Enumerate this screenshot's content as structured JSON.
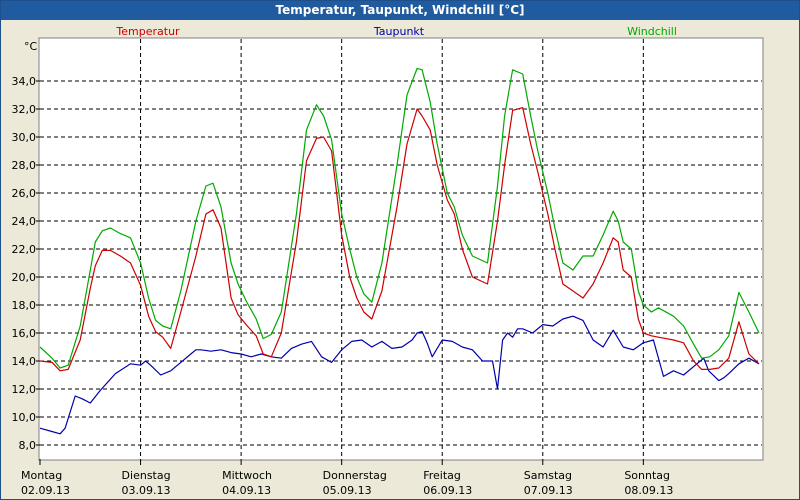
{
  "window": {
    "title": "Temperatur, Taupunkt, Windchill [°C]"
  },
  "chart_data": {
    "type": "line",
    "ylabel": "°C",
    "ylim": [
      7.0,
      37.0
    ],
    "yticks": [
      "8,0",
      "10,0",
      "12,0",
      "14,0",
      "16,0",
      "18,0",
      "20,0",
      "22,0",
      "24,0",
      "26,0",
      "28,0",
      "30,0",
      "32,0",
      "34,0"
    ],
    "ytick_values": [
      8,
      10,
      12,
      14,
      16,
      18,
      20,
      22,
      24,
      26,
      28,
      30,
      32,
      34
    ],
    "xlim": [
      0,
      7.18
    ],
    "x_days": [
      0,
      1,
      2,
      3,
      4,
      5,
      6
    ],
    "x_weekdays": [
      "Montag",
      "Dienstag",
      "Mittwoch",
      "Donnerstag",
      "Freitag",
      "Samstag",
      "Sonntag"
    ],
    "x_dates": [
      "02.09.13",
      "03.09.13",
      "04.09.13",
      "05.09.13",
      "06.09.13",
      "07.09.13",
      "08.09.13"
    ],
    "grid": true,
    "legend": "top",
    "series": [
      {
        "name": "Temperatur",
        "color": "#cc0000",
        "x": [
          0,
          0.12,
          0.2,
          0.28,
          0.4,
          0.5,
          0.55,
          0.62,
          0.7,
          0.8,
          0.9,
          1.0,
          1.08,
          1.15,
          1.22,
          1.3,
          1.4,
          1.55,
          1.65,
          1.72,
          1.8,
          1.9,
          1.97,
          2.05,
          2.15,
          2.22,
          2.3,
          2.4,
          2.55,
          2.65,
          2.75,
          2.82,
          2.9,
          3.0,
          3.08,
          3.15,
          3.22,
          3.3,
          3.4,
          3.55,
          3.65,
          3.75,
          3.8,
          3.88,
          3.95,
          4.05,
          4.12,
          4.2,
          4.3,
          4.45,
          4.55,
          4.62,
          4.7,
          4.8,
          4.88,
          4.95,
          5.05,
          5.12,
          5.2,
          5.3,
          5.4,
          5.5,
          5.6,
          5.7,
          5.75,
          5.8,
          5.88,
          5.95,
          6.0,
          6.08,
          6.15,
          6.3,
          6.4,
          6.5,
          6.58,
          6.66,
          6.75,
          6.85,
          6.95,
          7.05,
          7.15
        ],
        "values": [
          14.0,
          13.9,
          13.3,
          13.4,
          15.5,
          19.2,
          20.8,
          21.9,
          21.9,
          21.5,
          21.0,
          19.4,
          17.2,
          16.1,
          15.7,
          14.9,
          17.5,
          21.5,
          24.5,
          24.8,
          23.5,
          18.5,
          17.3,
          16.6,
          15.8,
          14.5,
          14.3,
          16.0,
          22.5,
          28.3,
          29.9,
          30.0,
          29.0,
          23.0,
          20.0,
          18.5,
          17.5,
          17.0,
          19.0,
          25.0,
          29.5,
          32.0,
          31.5,
          30.5,
          28.0,
          25.5,
          24.5,
          22.0,
          20.0,
          19.5,
          24.0,
          28.0,
          31.9,
          32.1,
          29.5,
          27.5,
          24.5,
          22.0,
          19.5,
          19.0,
          18.5,
          19.5,
          21.0,
          22.8,
          22.5,
          20.5,
          20.0,
          17.0,
          16.0,
          15.8,
          15.7,
          15.5,
          15.3,
          14.0,
          13.4,
          13.4,
          13.5,
          14.2,
          16.8,
          14.5,
          13.8
        ]
      },
      {
        "name": "Taupunkt",
        "color": "#0000aa",
        "x": [
          0,
          0.1,
          0.2,
          0.25,
          0.35,
          0.42,
          0.5,
          0.6,
          0.75,
          0.9,
          1.0,
          1.05,
          1.1,
          1.2,
          1.3,
          1.4,
          1.5,
          1.55,
          1.6,
          1.7,
          1.8,
          1.9,
          2.0,
          2.1,
          2.2,
          2.3,
          2.4,
          2.5,
          2.6,
          2.7,
          2.8,
          2.9,
          3.0,
          3.1,
          3.2,
          3.3,
          3.4,
          3.5,
          3.6,
          3.7,
          3.75,
          3.8,
          3.85,
          3.9,
          4.0,
          4.1,
          4.2,
          4.3,
          4.4,
          4.5,
          4.55,
          4.6,
          4.65,
          4.7,
          4.75,
          4.8,
          4.9,
          5.0,
          5.1,
          5.2,
          5.3,
          5.4,
          5.5,
          5.6,
          5.7,
          5.8,
          5.9,
          6.0,
          6.1,
          6.2,
          6.3,
          6.4,
          6.5,
          6.6,
          6.65,
          6.75,
          6.8,
          6.85,
          6.95,
          7.05,
          7.15
        ],
        "values": [
          9.2,
          9.0,
          8.8,
          9.2,
          11.5,
          11.3,
          11.0,
          11.9,
          13.1,
          13.8,
          13.7,
          14.0,
          13.7,
          13.0,
          13.3,
          13.9,
          14.5,
          14.8,
          14.8,
          14.7,
          14.8,
          14.6,
          14.5,
          14.3,
          14.5,
          14.3,
          14.2,
          14.9,
          15.2,
          15.4,
          14.3,
          13.9,
          14.8,
          15.4,
          15.5,
          15.0,
          15.4,
          14.9,
          15.0,
          15.5,
          16.0,
          16.1,
          15.3,
          14.3,
          15.5,
          15.4,
          15.0,
          14.8,
          14.0,
          14.0,
          12.0,
          15.5,
          16.0,
          15.7,
          16.3,
          16.3,
          16.0,
          16.6,
          16.5,
          17.0,
          17.2,
          16.9,
          15.5,
          15.0,
          16.2,
          15.0,
          14.8,
          15.3,
          15.5,
          12.9,
          13.3,
          13.0,
          13.6,
          14.2,
          13.3,
          12.6,
          12.8,
          13.1,
          13.8,
          14.2,
          13.8
        ]
      },
      {
        "name": "Windchill",
        "color": "#00aa00",
        "x": [
          0,
          0.12,
          0.2,
          0.28,
          0.4,
          0.5,
          0.55,
          0.62,
          0.7,
          0.8,
          0.9,
          1.0,
          1.08,
          1.15,
          1.22,
          1.3,
          1.4,
          1.55,
          1.65,
          1.72,
          1.8,
          1.9,
          1.97,
          2.05,
          2.15,
          2.22,
          2.3,
          2.4,
          2.55,
          2.65,
          2.75,
          2.82,
          2.9,
          3.0,
          3.08,
          3.15,
          3.22,
          3.3,
          3.4,
          3.55,
          3.65,
          3.75,
          3.8,
          3.88,
          3.95,
          4.05,
          4.12,
          4.2,
          4.3,
          4.45,
          4.55,
          4.62,
          4.7,
          4.8,
          4.88,
          4.95,
          5.05,
          5.12,
          5.2,
          5.3,
          5.4,
          5.5,
          5.6,
          5.7,
          5.75,
          5.8,
          5.88,
          5.95,
          6.0,
          6.08,
          6.15,
          6.3,
          6.4,
          6.5,
          6.58,
          6.66,
          6.75,
          6.85,
          6.95,
          7.05,
          7.15
        ],
        "values": [
          15.0,
          14.2,
          13.5,
          13.7,
          16.5,
          20.5,
          22.5,
          23.3,
          23.5,
          23.1,
          22.8,
          21.0,
          18.5,
          16.9,
          16.5,
          16.3,
          19.0,
          24.0,
          26.5,
          26.7,
          25.0,
          21.0,
          19.5,
          18.3,
          17.0,
          15.6,
          15.9,
          17.5,
          24.5,
          30.5,
          32.3,
          31.5,
          29.8,
          24.5,
          22.0,
          20.0,
          18.8,
          18.2,
          21.0,
          28.0,
          33.0,
          34.9,
          34.8,
          32.5,
          29.5,
          26.0,
          25.0,
          23.0,
          21.5,
          21.0,
          26.5,
          31.5,
          34.8,
          34.5,
          31.5,
          29.0,
          26.0,
          23.5,
          21.0,
          20.5,
          21.5,
          21.5,
          23.0,
          24.7,
          24.0,
          22.5,
          22.0,
          19.0,
          18.0,
          17.5,
          17.8,
          17.2,
          16.5,
          15.2,
          14.2,
          14.3,
          14.8,
          15.8,
          18.9,
          17.5,
          16.0
        ]
      }
    ]
  }
}
